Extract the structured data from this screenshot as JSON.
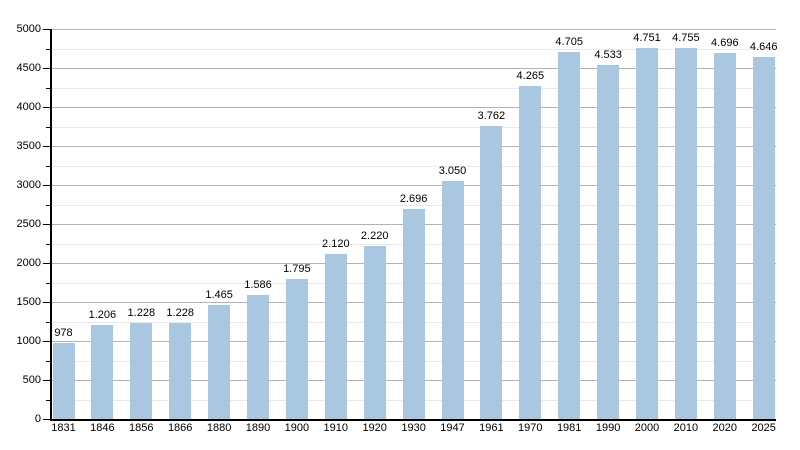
{
  "chart_data": {
    "type": "bar",
    "title": "",
    "xlabel": "",
    "ylabel": "",
    "categories": [
      "1831",
      "1846",
      "1856",
      "1866",
      "1880",
      "1890",
      "1900",
      "1910",
      "1920",
      "1930",
      "1947",
      "1961",
      "1970",
      "1981",
      "1990",
      "2000",
      "2010",
      "2020",
      "2025"
    ],
    "values": [
      978,
      1206,
      1228,
      1228,
      1465,
      1586,
      1795,
      2120,
      2220,
      2696,
      3050,
      3762,
      4265,
      4705,
      4533,
      4751,
      4755,
      4696,
      4646
    ],
    "bar_labels": [
      "978",
      "1.206",
      "1.228",
      "1.228",
      "1.465",
      "1.586",
      "1.795",
      "2.120",
      "2.220",
      "2.696",
      "3.050",
      "3.762",
      "4.265",
      "4.705",
      "4.533",
      "4.751",
      "4.755",
      "4.696",
      "4.646"
    ],
    "ylim": [
      0,
      5000
    ],
    "y_major_step": 500,
    "y_minor_step": 250,
    "y_tick_labels": [
      "0",
      "500",
      "1000",
      "1500",
      "2000",
      "2500",
      "3000",
      "3500",
      "4000",
      "4500",
      "5000"
    ],
    "grid": true,
    "legend": false,
    "colors": {
      "bar_fill": "#aac7e2",
      "major_grid": "#b3b3b3",
      "minor_grid": "#e9e9e9",
      "axis": "#000000",
      "text": "#000000",
      "background": "#ffffff"
    }
  }
}
